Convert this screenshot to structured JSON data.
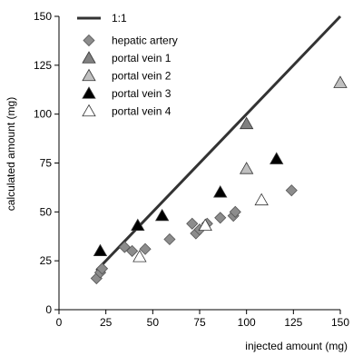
{
  "chart_data": {
    "type": "scatter",
    "title": "",
    "xlabel": "injected amount (mg)",
    "ylabel": "calculated amount (mg)",
    "xlim": [
      0,
      150
    ],
    "ylim": [
      0,
      150
    ],
    "xticks": [
      0,
      25,
      50,
      75,
      100,
      125,
      150
    ],
    "yticks": [
      0,
      25,
      50,
      75,
      100,
      125,
      150
    ],
    "grid": false,
    "legend_position": "top-left",
    "reference_line": {
      "name": "1:1",
      "from": [
        20,
        20
      ],
      "to": [
        150,
        150
      ],
      "color": "#333333"
    },
    "series": [
      {
        "name": "hepatic artery",
        "marker": "diamond",
        "color": "#8c8c8c",
        "points": [
          [
            20,
            16
          ],
          [
            22,
            19
          ],
          [
            23,
            21
          ],
          [
            35,
            32
          ],
          [
            39,
            30
          ],
          [
            46,
            31
          ],
          [
            59,
            36
          ],
          [
            71,
            44
          ],
          [
            73,
            39
          ],
          [
            75,
            41
          ],
          [
            79,
            44
          ],
          [
            86,
            47
          ],
          [
            93,
            48
          ],
          [
            94,
            50
          ],
          [
            124,
            61
          ]
        ]
      },
      {
        "name": "portal vein 1",
        "marker": "triangle",
        "color": "#808080",
        "points": [
          [
            100,
            95
          ]
        ]
      },
      {
        "name": "portal vein 2",
        "marker": "triangle",
        "color": "#c0c0c0",
        "points": [
          [
            100,
            72
          ],
          [
            150,
            116
          ]
        ]
      },
      {
        "name": "portal vein 3",
        "marker": "triangle",
        "color": "#000000",
        "points": [
          [
            22,
            30
          ],
          [
            42,
            43
          ],
          [
            55,
            48
          ],
          [
            86,
            60
          ],
          [
            116,
            77
          ]
        ]
      },
      {
        "name": "portal vein 4",
        "marker": "triangle",
        "color": "#ffffff",
        "points": [
          [
            43,
            27
          ],
          [
            78,
            43
          ],
          [
            108,
            56
          ]
        ]
      }
    ]
  }
}
